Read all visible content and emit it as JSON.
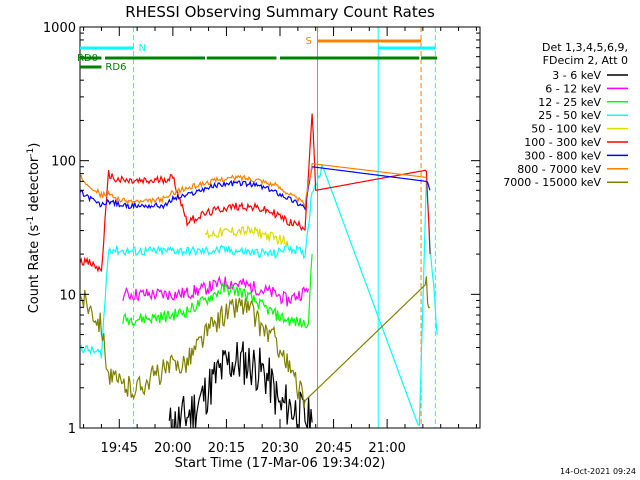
{
  "chart_data": {
    "type": "line",
    "title": "RHESSI Observing Summary Count Rates",
    "xlabel": "Start Time (17-Mar-06 19:34:02)",
    "ylabel_main": "Count Rate (s",
    "ylabel_sup1": "-1",
    "ylabel_mid": " detector",
    "ylabel_sup2": "-1",
    "ylabel_end": ")",
    "yscale": "log",
    "ylim": [
      1,
      1000
    ],
    "xlim_minutes": [
      0,
      112
    ],
    "x_tick_labels": [
      "19:45",
      "20:00",
      "20:15",
      "20:30",
      "20:45",
      "21:00"
    ],
    "x_tick_minutes": [
      11,
      26,
      41,
      56,
      71,
      86
    ],
    "y_tick_labels": [
      "1",
      "10",
      "100",
      "1000"
    ],
    "y_tick_values": [
      1,
      10,
      100,
      1000
    ],
    "timestamp": "14-Oct-2021 09:24",
    "legend": {
      "header_line1": "Det 1,3,4,5,6,9,",
      "header_line2": "FDecim 2, Att 0",
      "placement": "top-right, outside plot"
    },
    "series": [
      {
        "name": "3 - 6 keV",
        "color": "#000000",
        "x": [
          25,
          31,
          35,
          38,
          41,
          44,
          48,
          52,
          54,
          56,
          58,
          61,
          63,
          65
        ],
        "values": [
          1,
          1.3,
          1.8,
          2.4,
          3.0,
          3.2,
          3.0,
          2.5,
          2.0,
          1.4,
          1.5,
          1.3,
          1.2,
          1.1
        ]
      },
      {
        "name": "6 - 12 keV",
        "color": "#ff00ff",
        "x": [
          12,
          18,
          24,
          26,
          30,
          35,
          40,
          45,
          50,
          55,
          58,
          63,
          64
        ],
        "values": [
          10,
          10,
          10,
          10,
          10.2,
          11,
          12.3,
          12,
          11,
          10,
          9,
          10.5,
          11
        ]
      },
      {
        "name": "12 - 25 keV",
        "color": "#00ff00",
        "x": [
          12,
          18,
          24,
          26,
          30,
          35,
          40,
          45,
          50,
          55,
          58,
          63,
          64,
          65
        ],
        "values": [
          6.5,
          6.6,
          6.8,
          7.0,
          7.5,
          9.0,
          11,
          10.5,
          8.5,
          7,
          6.4,
          6.0,
          6.5,
          20
        ]
      },
      {
        "name": "25 - 50 keV",
        "color": "#00ffff",
        "x": [
          0,
          3,
          6,
          8,
          12,
          18,
          24,
          26,
          30,
          35,
          40,
          45,
          50,
          55,
          58,
          63,
          65,
          68,
          95,
          97,
          98,
          100
        ],
        "values": [
          4.0,
          3.8,
          3.6,
          22,
          21,
          21,
          21,
          21.5,
          21,
          21,
          21.5,
          21,
          20.5,
          20,
          23,
          20,
          60,
          90,
          1,
          75,
          25,
          5
        ]
      },
      {
        "name": "50 - 100 keV",
        "color": "#dddd00",
        "x": [
          35,
          40,
          45,
          50,
          55,
          58
        ],
        "values": [
          28,
          29,
          30,
          29,
          26,
          25
        ]
      },
      {
        "name": "100 - 300 keV",
        "color": "#ff0000",
        "x": [
          0,
          3,
          6,
          8,
          10,
          14,
          20,
          26,
          30,
          35,
          40,
          45,
          50,
          55,
          58,
          63,
          65,
          66,
          97,
          98
        ],
        "values": [
          18,
          17,
          15,
          80,
          72,
          70,
          70,
          75,
          35,
          40,
          44,
          46,
          44,
          40,
          35,
          32,
          230,
          60,
          85,
          20
        ]
      },
      {
        "name": "300 - 800 keV",
        "color": "#0000ff",
        "x": [
          0,
          3,
          6,
          8,
          12,
          18,
          24,
          26,
          30,
          35,
          40,
          45,
          50,
          55,
          58,
          63,
          65,
          97,
          98
        ],
        "values": [
          58,
          52,
          46,
          50,
          46,
          46,
          46,
          52,
          55,
          62,
          67,
          68,
          65,
          58,
          53,
          45,
          90,
          70,
          60
        ]
      },
      {
        "name": "800 - 7000 keV",
        "color": "#ff8000",
        "x": [
          0,
          3,
          6,
          8,
          12,
          18,
          24,
          26,
          30,
          35,
          40,
          45,
          50,
          55,
          58,
          63,
          65,
          97
        ],
        "values": [
          75,
          65,
          55,
          56,
          50,
          49,
          52,
          58,
          62,
          68,
          73,
          75,
          72,
          65,
          58,
          47,
          95,
          75
        ]
      },
      {
        "name": "7000 - 15000 keV",
        "color": "#808000",
        "x": [
          0,
          3,
          6,
          8,
          10,
          14,
          16,
          20,
          26,
          30,
          35,
          40,
          45,
          48,
          50,
          55,
          58,
          61,
          63,
          97,
          98
        ],
        "values": [
          10,
          8,
          6,
          2.5,
          2.2,
          2.0,
          2.0,
          2.4,
          2.9,
          3.2,
          5,
          7,
          8.5,
          7.5,
          6,
          4.5,
          3,
          2,
          1.6,
          12,
          8
        ]
      }
    ],
    "vertical_markers": [
      {
        "color": "#00ffff",
        "style": "solid",
        "minute": 0
      },
      {
        "color": "#00ffff",
        "style": "dashed",
        "minute": 15
      },
      {
        "color": "#00ffff",
        "style": "solid",
        "minute": 83.5
      },
      {
        "color": "#ff8000",
        "style": "solid",
        "minute": 66.5
      },
      {
        "color": "#ff8000",
        "style": "dashed",
        "minute": 95.5
      },
      {
        "color": "#00ffff",
        "style": "dashed",
        "minute": 99.5
      }
    ],
    "flags": {
      "N": {
        "label": "N",
        "color": "#00ffff",
        "intervals": [
          [
            0,
            15
          ],
          [
            83.5,
            99.5
          ]
        ]
      },
      "S": {
        "label": "S",
        "color": "#ff8000",
        "intervals": [
          [
            66.5,
            95.5
          ]
        ]
      },
      "RD0": {
        "label": "RD0",
        "color": "#008000",
        "intervals": [
          [
            0,
            6
          ],
          [
            7,
            35
          ],
          [
            35.5,
            55
          ],
          [
            56,
            95
          ],
          [
            95.5,
            100
          ]
        ]
      },
      "RD6": {
        "label": "RD6",
        "color": "#008000",
        "intervals": [
          [
            0,
            6
          ]
        ]
      }
    }
  }
}
